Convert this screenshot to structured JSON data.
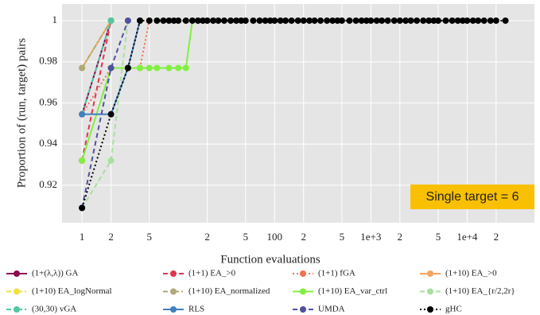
{
  "chart_data": {
    "type": "line",
    "xlabel": "Function evaluations",
    "ylabel": "Proportion of (run, target) pairs",
    "annotation": "Single target = 6",
    "xscale": "log",
    "grid": true,
    "xlim": [
      0.62,
      50000
    ],
    "ylim": [
      0.9018,
      1.0081
    ],
    "xticks": [
      1,
      2,
      5,
      {
        "value": 20,
        "label": "2"
      },
      {
        "value": 50,
        "label": "5"
      },
      100,
      {
        "value": 200,
        "label": "2"
      },
      {
        "value": 500,
        "label": "5"
      },
      {
        "value": 1000,
        "label": "1e+3"
      },
      {
        "value": 2000,
        "label": "2"
      },
      {
        "value": 5000,
        "label": "5"
      },
      {
        "value": 10000,
        "label": "1e+4"
      },
      {
        "value": 20000,
        "label": "2"
      }
    ],
    "yticks": [
      0.92,
      0.94,
      0.96,
      0.98,
      1
    ],
    "series": [
      {
        "name": "(1+(λ,λ)) GA",
        "color": "#8b0a50",
        "style": "solid",
        "x": [
          1,
          2
        ],
        "values": [
          0.9545,
          1
        ]
      },
      {
        "name": "(1+1) EA_>0",
        "color": "#e0344c",
        "style": "dashed",
        "x": [
          1,
          2
        ],
        "values": [
          0.932,
          1
        ]
      },
      {
        "name": "(1+1) fGA",
        "color": "#f07050",
        "style": "dotted",
        "x": [
          1,
          2,
          4,
          5
        ],
        "values": [
          0.9545,
          0.977,
          0.977,
          1
        ]
      },
      {
        "name": "(1+10) EA_>0",
        "color": "#f4a460",
        "style": "solid",
        "x": [
          1,
          2
        ],
        "values": [
          0.977,
          1
        ]
      },
      {
        "name": "(1+10) EA_logNormal",
        "color": "#f0e040",
        "style": "dashdot",
        "x": [
          1,
          2
        ],
        "values": [
          0.977,
          1
        ]
      },
      {
        "name": "(1+10) EA_normalized",
        "color": "#b0a878",
        "style": "dashdot",
        "x": [
          1,
          2
        ],
        "values": [
          0.977,
          1
        ]
      },
      {
        "name": "(1+10) EA_var_ctrl",
        "color": "#80f040",
        "style": "solid",
        "x": [
          1,
          2,
          3,
          4,
          5,
          6,
          8,
          10,
          12,
          14
        ],
        "values": [
          0.932,
          0.977,
          0.977,
          0.977,
          0.977,
          0.977,
          0.977,
          0.977,
          0.977,
          1
        ]
      },
      {
        "name": "(1+10) EA_{r/2,2r}",
        "color": "#a8e0a0",
        "style": "dashed",
        "x": [
          1,
          2,
          3
        ],
        "values": [
          0.909,
          0.932,
          1
        ]
      },
      {
        "name": "(30,30) vGA",
        "color": "#50c8a0",
        "style": "dashdot",
        "x": [
          1,
          2
        ],
        "values": [
          0.9545,
          1
        ]
      },
      {
        "name": "RLS",
        "color": "#4080c0",
        "style": "solid",
        "x": [
          1,
          2,
          3,
          4
        ],
        "values": [
          0.9545,
          0.9545,
          0.977,
          1
        ]
      },
      {
        "name": "UMDA",
        "color": "#5050a0",
        "style": "dashed",
        "x": [
          1,
          2,
          3
        ],
        "values": [
          0.909,
          0.977,
          1
        ]
      },
      {
        "name": "gHC",
        "color": "#000000",
        "style": "dotted",
        "x": [
          1,
          2,
          3,
          4,
          5,
          6,
          7,
          8,
          9,
          10,
          12,
          14,
          16,
          18,
          20,
          23,
          26,
          30,
          35,
          40,
          45,
          50,
          60,
          70,
          80,
          90,
          100,
          115,
          130,
          150,
          175,
          200,
          230,
          260,
          300,
          350,
          400,
          450,
          500,
          600,
          700,
          800,
          900,
          1000,
          1150,
          1300,
          1500,
          1750,
          2000,
          2300,
          2600,
          3000,
          3500,
          4000,
          4500,
          5000,
          6000,
          7000,
          8000,
          9000,
          10000,
          11500,
          13000,
          15000,
          17500,
          20000,
          25000
        ],
        "values": [
          0.909,
          0.9545,
          0.977,
          1,
          1,
          1,
          1,
          1,
          1,
          1,
          1,
          1,
          1,
          1,
          1,
          1,
          1,
          1,
          1,
          1,
          1,
          1,
          1,
          1,
          1,
          1,
          1,
          1,
          1,
          1,
          1,
          1,
          1,
          1,
          1,
          1,
          1,
          1,
          1,
          1,
          1,
          1,
          1,
          1,
          1,
          1,
          1,
          1,
          1,
          1,
          1,
          1,
          1,
          1,
          1,
          1,
          1,
          1,
          1,
          1,
          1,
          1,
          1,
          1,
          1,
          1,
          1
        ]
      }
    ]
  }
}
